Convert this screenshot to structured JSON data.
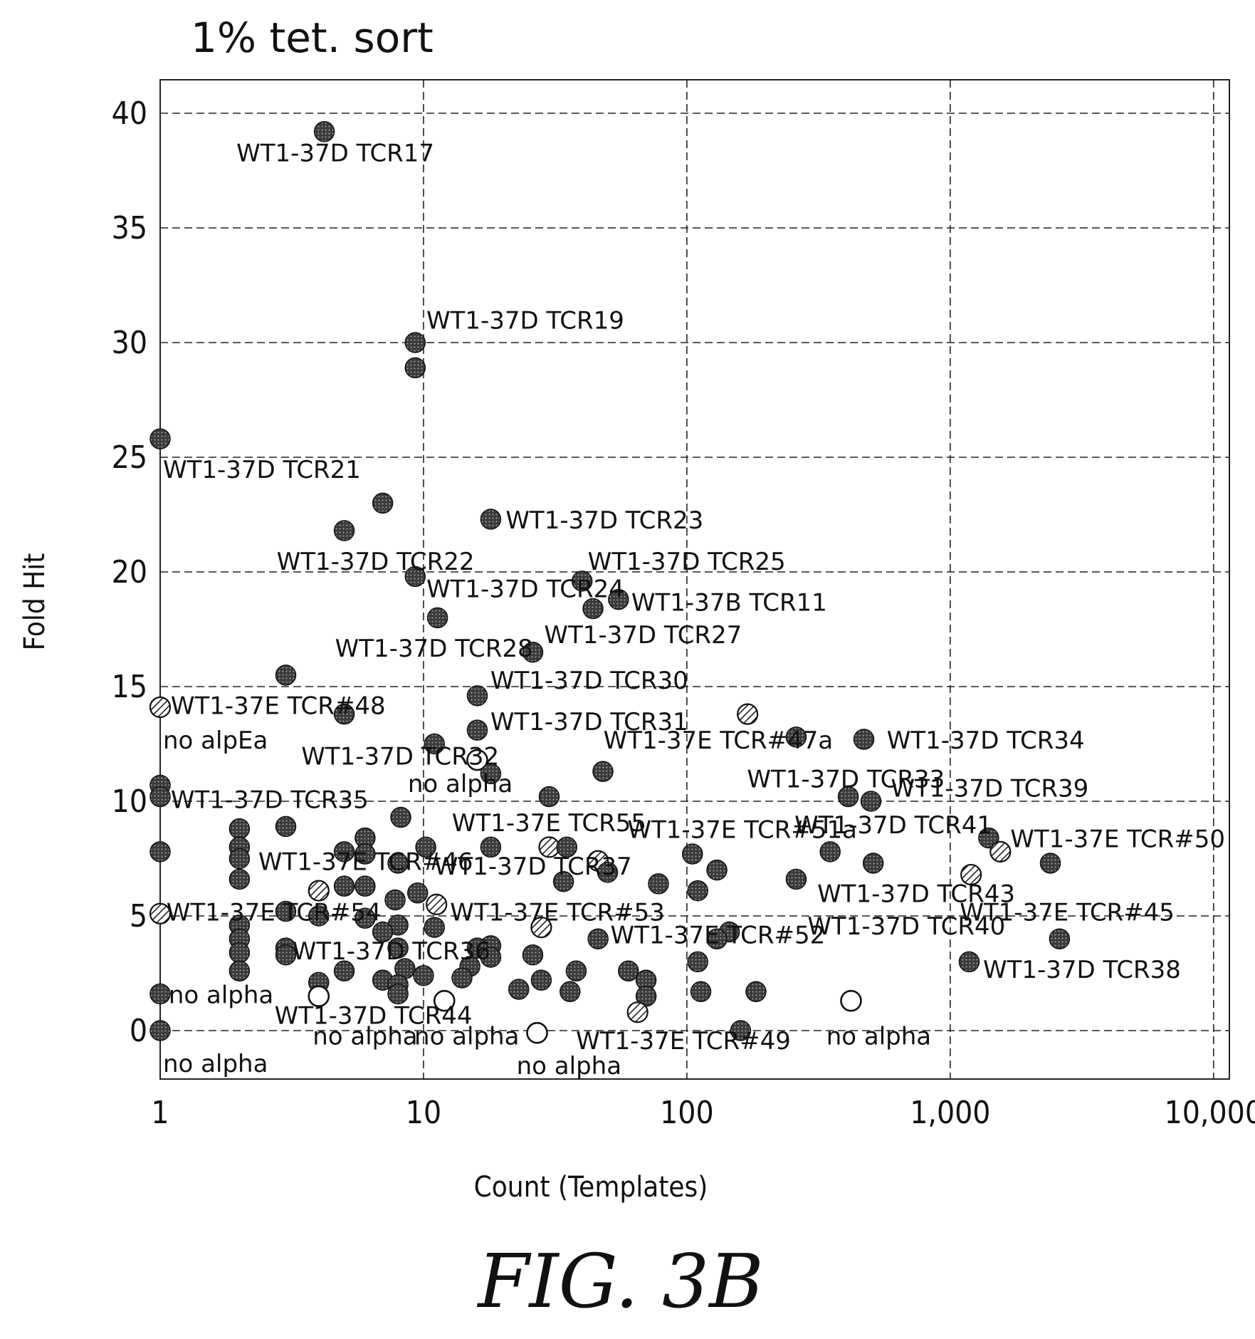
{
  "chart_data": {
    "type": "scatter",
    "title": "1% tet. sort",
    "xlabel": "Count (Templates)",
    "ylabel": "Fold Hit",
    "x_scale": "log",
    "xlim": [
      1,
      10000
    ],
    "ylim": [
      -2,
      41
    ],
    "grid": true,
    "x_ticks": [
      "1",
      "10",
      "100",
      "1,000",
      "10,000"
    ],
    "y_ticks": [
      "0",
      "5",
      "10",
      "15",
      "20",
      "25",
      "30",
      "35",
      "40"
    ],
    "figure_label": "FIG. 3B",
    "point_styles": [
      "filled",
      "hatched",
      "open"
    ],
    "points": [
      {
        "x": 4.2,
        "y": 39.2,
        "style": "filled",
        "label": "WT1-37D TCR17"
      },
      {
        "x": 9.3,
        "y": 30.0,
        "style": "filled",
        "label": "WT1-37D TCR19"
      },
      {
        "x": 9.3,
        "y": 28.9,
        "style": "filled",
        "label": ""
      },
      {
        "x": 1.0,
        "y": 25.8,
        "style": "filled",
        "label": "WT1-37D TCR21"
      },
      {
        "x": 7.0,
        "y": 23.0,
        "style": "filled",
        "label": ""
      },
      {
        "x": 5.0,
        "y": 21.8,
        "style": "filled",
        "label": "WT1-37D TCR22"
      },
      {
        "x": 18,
        "y": 22.3,
        "style": "filled",
        "label": "WT1-37D TCR23"
      },
      {
        "x": 9.3,
        "y": 19.8,
        "style": "filled",
        "label": "WT1-37D TCR24"
      },
      {
        "x": 40,
        "y": 19.6,
        "style": "filled",
        "label": "WT1-37D TCR25"
      },
      {
        "x": 55,
        "y": 18.8,
        "style": "filled",
        "label": "WT1-37B TCR11"
      },
      {
        "x": 44,
        "y": 18.4,
        "style": "filled",
        "label": ""
      },
      {
        "x": 11.3,
        "y": 18.0,
        "style": "filled",
        "label": "WT1-37D TCR28"
      },
      {
        "x": 26,
        "y": 16.5,
        "style": "filled",
        "label": "WT1-37D TCR27"
      },
      {
        "x": 3.0,
        "y": 15.5,
        "style": "filled",
        "label": ""
      },
      {
        "x": 16,
        "y": 14.6,
        "style": "filled",
        "label": "WT1-37D TCR30"
      },
      {
        "x": 1.0,
        "y": 14.1,
        "style": "hatched",
        "label": "WT1-37E TCR#48"
      },
      {
        "x": 5.0,
        "y": 13.8,
        "style": "filled",
        "label": ""
      },
      {
        "x": 16,
        "y": 13.1,
        "style": "filled",
        "label": "WT1-37D TCR31"
      },
      {
        "x": 170,
        "y": 13.8,
        "style": "hatched",
        "label": "WT1-37E TCR#47a"
      },
      {
        "x": 11.0,
        "y": 12.5,
        "style": "filled",
        "label": "WT1-37D TCR32"
      },
      {
        "x": 260,
        "y": 12.8,
        "style": "filled",
        "label": ""
      },
      {
        "x": 470,
        "y": 12.7,
        "style": "filled",
        "label": "WT1-37D TCR34"
      },
      {
        "x": 16,
        "y": 11.8,
        "style": "open",
        "label": "no alpha"
      },
      {
        "x": 18,
        "y": 11.2,
        "style": "filled",
        "label": ""
      },
      {
        "x": 48,
        "y": 11.3,
        "style": "filled",
        "label": ""
      },
      {
        "x": 1.0,
        "y": 10.7,
        "style": "filled",
        "label": "WT1-37D TCR35"
      },
      {
        "x": 1.0,
        "y": 10.2,
        "style": "filled",
        "label": ""
      },
      {
        "x": 410,
        "y": 10.2,
        "style": "filled",
        "label": "WT1-37D TCR33"
      },
      {
        "x": 500,
        "y": 10.0,
        "style": "filled",
        "label": "WT1-37D TCR39"
      },
      {
        "x": 30,
        "y": 10.2,
        "style": "filled",
        "label": ""
      },
      {
        "x": 8.2,
        "y": 9.3,
        "style": "filled",
        "label": ""
      },
      {
        "x": 3.0,
        "y": 8.9,
        "style": "filled",
        "label": ""
      },
      {
        "x": 2.0,
        "y": 8.8,
        "style": "filled",
        "label": ""
      },
      {
        "x": 2.0,
        "y": 8.0,
        "style": "filled",
        "label": ""
      },
      {
        "x": 6.0,
        "y": 8.4,
        "style": "filled",
        "label": ""
      },
      {
        "x": 1400,
        "y": 8.4,
        "style": "filled",
        "label": "WT1-37E TCR#50"
      },
      {
        "x": 1.0,
        "y": 7.8,
        "style": "filled",
        "label": ""
      },
      {
        "x": 2.0,
        "y": 7.5,
        "style": "filled",
        "label": ""
      },
      {
        "x": 5.0,
        "y": 7.8,
        "style": "filled",
        "label": "WT1-37E TCR#46"
      },
      {
        "x": 6.0,
        "y": 7.7,
        "style": "filled",
        "label": ""
      },
      {
        "x": 10.2,
        "y": 8.0,
        "style": "filled",
        "label": ""
      },
      {
        "x": 30,
        "y": 8.0,
        "style": "hatched",
        "label": "WT1-37E TCR55"
      },
      {
        "x": 35,
        "y": 8.0,
        "style": "filled",
        "label": ""
      },
      {
        "x": 18,
        "y": 8.0,
        "style": "filled",
        "label": ""
      },
      {
        "x": 1550,
        "y": 7.8,
        "style": "hatched",
        "label": ""
      },
      {
        "x": 350,
        "y": 7.8,
        "style": "filled",
        "label": "WT1-37D TCR41"
      },
      {
        "x": 105,
        "y": 7.7,
        "style": "filled",
        "label": "WT1-37E TCR#51a"
      },
      {
        "x": 46,
        "y": 7.4,
        "style": "hatched",
        "label": ""
      },
      {
        "x": 8.0,
        "y": 7.3,
        "style": "filled",
        "label": ""
      },
      {
        "x": 510,
        "y": 7.3,
        "style": "filled",
        "label": ""
      },
      {
        "x": 2400,
        "y": 7.3,
        "style": "filled",
        "label": ""
      },
      {
        "x": 130,
        "y": 7.0,
        "style": "filled",
        "label": ""
      },
      {
        "x": 50,
        "y": 6.9,
        "style": "filled",
        "label": "WT1-37D TCR37"
      },
      {
        "x": 1200,
        "y": 6.8,
        "style": "hatched",
        "label": "WT1-37E TCR#45"
      },
      {
        "x": 2.0,
        "y": 6.6,
        "style": "filled",
        "label": ""
      },
      {
        "x": 260,
        "y": 6.6,
        "style": "filled",
        "label": "WT1-37D TCR43"
      },
      {
        "x": 34,
        "y": 6.5,
        "style": "filled",
        "label": ""
      },
      {
        "x": 5.0,
        "y": 6.3,
        "style": "filled",
        "label": ""
      },
      {
        "x": 6.0,
        "y": 6.3,
        "style": "filled",
        "label": ""
      },
      {
        "x": 78,
        "y": 6.4,
        "style": "filled",
        "label": ""
      },
      {
        "x": 4.0,
        "y": 6.1,
        "style": "hatched",
        "label": ""
      },
      {
        "x": 110,
        "y": 6.1,
        "style": "filled",
        "label": ""
      },
      {
        "x": 9.5,
        "y": 6.0,
        "style": "filled",
        "label": ""
      },
      {
        "x": 7.8,
        "y": 5.7,
        "style": "filled",
        "label": ""
      },
      {
        "x": 11.2,
        "y": 5.5,
        "style": "hatched",
        "label": "WT1-37E TCR#53"
      },
      {
        "x": 1.0,
        "y": 5.1,
        "style": "hatched",
        "label": "WT1-37E TCR#54"
      },
      {
        "x": 3.0,
        "y": 5.2,
        "style": "filled",
        "label": ""
      },
      {
        "x": 4.0,
        "y": 5.0,
        "style": "filled",
        "label": ""
      },
      {
        "x": 6.0,
        "y": 4.9,
        "style": "filled",
        "label": ""
      },
      {
        "x": 2.0,
        "y": 4.6,
        "style": "filled",
        "label": ""
      },
      {
        "x": 8.0,
        "y": 4.6,
        "style": "filled",
        "label": ""
      },
      {
        "x": 11.0,
        "y": 4.5,
        "style": "filled",
        "label": ""
      },
      {
        "x": 28,
        "y": 4.5,
        "style": "hatched",
        "label": ""
      },
      {
        "x": 7.0,
        "y": 4.3,
        "style": "filled",
        "label": ""
      },
      {
        "x": 145,
        "y": 4.3,
        "style": "filled",
        "label": "WT1-37E TCR#52"
      },
      {
        "x": 2.0,
        "y": 4.0,
        "style": "filled",
        "label": ""
      },
      {
        "x": 46,
        "y": 4.0,
        "style": "filled",
        "label": ""
      },
      {
        "x": 130,
        "y": 4.0,
        "style": "filled",
        "label": "WT1-37D TCR40"
      },
      {
        "x": 2600,
        "y": 4.0,
        "style": "filled",
        "label": ""
      },
      {
        "x": 3.0,
        "y": 3.6,
        "style": "filled",
        "label": "WT1-37D TCR36"
      },
      {
        "x": 18,
        "y": 3.7,
        "style": "filled",
        "label": ""
      },
      {
        "x": 8.0,
        "y": 3.6,
        "style": "filled",
        "label": ""
      },
      {
        "x": 16,
        "y": 3.6,
        "style": "filled",
        "label": ""
      },
      {
        "x": 2.0,
        "y": 3.4,
        "style": "filled",
        "label": ""
      },
      {
        "x": 3.0,
        "y": 3.3,
        "style": "filled",
        "label": ""
      },
      {
        "x": 26,
        "y": 3.3,
        "style": "filled",
        "label": ""
      },
      {
        "x": 18,
        "y": 3.2,
        "style": "filled",
        "label": ""
      },
      {
        "x": 1180,
        "y": 3.0,
        "style": "filled",
        "label": "WT1-37D TCR38"
      },
      {
        "x": 110,
        "y": 3.0,
        "style": "filled",
        "label": ""
      },
      {
        "x": 15,
        "y": 2.8,
        "style": "filled",
        "label": ""
      },
      {
        "x": 8.5,
        "y": 2.7,
        "style": "filled",
        "label": ""
      },
      {
        "x": 2.0,
        "y": 2.6,
        "style": "filled",
        "label": ""
      },
      {
        "x": 5.0,
        "y": 2.6,
        "style": "filled",
        "label": ""
      },
      {
        "x": 38,
        "y": 2.6,
        "style": "filled",
        "label": ""
      },
      {
        "x": 60,
        "y": 2.6,
        "style": "filled",
        "label": ""
      },
      {
        "x": 10.0,
        "y": 2.4,
        "style": "filled",
        "label": ""
      },
      {
        "x": 14,
        "y": 2.3,
        "style": "filled",
        "label": ""
      },
      {
        "x": 7.0,
        "y": 2.2,
        "style": "filled",
        "label": ""
      },
      {
        "x": 4.0,
        "y": 2.1,
        "style": "filled",
        "label": ""
      },
      {
        "x": 28,
        "y": 2.2,
        "style": "filled",
        "label": ""
      },
      {
        "x": 70,
        "y": 2.2,
        "style": "filled",
        "label": ""
      },
      {
        "x": 8.0,
        "y": 2.0,
        "style": "filled",
        "label": ""
      },
      {
        "x": 23,
        "y": 1.8,
        "style": "filled",
        "label": ""
      },
      {
        "x": 36,
        "y": 1.7,
        "style": "filled",
        "label": ""
      },
      {
        "x": 113,
        "y": 1.7,
        "style": "filled",
        "label": ""
      },
      {
        "x": 183,
        "y": 1.7,
        "style": "filled",
        "label": ""
      },
      {
        "x": 1.0,
        "y": 1.6,
        "style": "filled",
        "label": "no alpha"
      },
      {
        "x": 8.0,
        "y": 1.6,
        "style": "filled",
        "label": ""
      },
      {
        "x": 4.0,
        "y": 1.5,
        "style": "open",
        "label": "WT1-37D TCR44"
      },
      {
        "x": 70,
        "y": 1.5,
        "style": "filled",
        "label": ""
      },
      {
        "x": 12.0,
        "y": 1.3,
        "style": "open",
        "label": "no alpha"
      },
      {
        "x": 420,
        "y": 1.3,
        "style": "open",
        "label": "no alpha"
      },
      {
        "x": 65,
        "y": 0.8,
        "style": "hatched",
        "label": "WT1-37E TCR#49"
      },
      {
        "x": 1.0,
        "y": 0.0,
        "style": "filled",
        "label": "no alpha"
      },
      {
        "x": 27,
        "y": -0.1,
        "style": "open",
        "label": "no alpha"
      },
      {
        "x": 160,
        "y": 0.0,
        "style": "filled",
        "label": ""
      }
    ],
    "annotations": [
      {
        "text": "WT1-37D TCR17",
        "x": 1.9,
        "y": 37.9
      },
      {
        "text": "WT1-37D TCR19",
        "x": 10.0,
        "y": 30.6
      },
      {
        "text": "WT1-37D TCR21",
        "x": 1.0,
        "y": 24.1
      },
      {
        "text": "WT1-37D TCR23",
        "x": 20.0,
        "y": 21.9
      },
      {
        "text": "WT1-37D TCR22",
        "x": 2.7,
        "y": 20.1
      },
      {
        "text": "WT1-37D TCR25",
        "x": 41.0,
        "y": 20.1
      },
      {
        "text": "WT1-37D TCR24",
        "x": 10.0,
        "y": 18.9
      },
      {
        "text": "WT1-37B TCR11",
        "x": 60.0,
        "y": 18.3
      },
      {
        "text": "WT1-37D TCR28",
        "x": 4.5,
        "y": 16.3
      },
      {
        "text": "WT1-37D TCR27",
        "x": 28.0,
        "y": 16.9
      },
      {
        "text": "WT1-37D TCR30",
        "x": 17.5,
        "y": 14.9
      },
      {
        "text": "WT1-37E TCR#48",
        "x": 1.07,
        "y": 13.8
      },
      {
        "text": "WT1-37D TCR31",
        "x": 17.5,
        "y": 13.1
      },
      {
        "text": "no alpEa",
        "x": 1.0,
        "y": 12.3
      },
      {
        "text": "WT1-37E TCR#47a",
        "x": 47.0,
        "y": 12.3
      },
      {
        "text": "WT1-37D TCR34",
        "x": 560,
        "y": 12.3
      },
      {
        "text": "WT1-37D TCR32",
        "x": 3.35,
        "y": 11.6
      },
      {
        "text": "WT1-37D TCR33",
        "x": 165,
        "y": 10.6
      },
      {
        "text": "no alpha",
        "x": 8.5,
        "y": 10.4
      },
      {
        "text": "WT1-37D TCR39",
        "x": 580,
        "y": 10.2
      },
      {
        "text": "WT1-37D TCR35",
        "x": 1.07,
        "y": 9.7
      },
      {
        "text": "WT1-37E TCR55",
        "x": 12.5,
        "y": 8.7
      },
      {
        "text": "WT1-37E TCR#51a",
        "x": 58.0,
        "y": 8.4
      },
      {
        "text": "WT1-37D TCR41",
        "x": 250,
        "y": 8.6
      },
      {
        "text": "WT1-37E TCR#50",
        "x": 1650,
        "y": 8.0
      },
      {
        "text": "WT1-37E TCR#46",
        "x": 2.3,
        "y": 7.0
      },
      {
        "text": "WT1-37D TCR37",
        "x": 10.7,
        "y": 6.8
      },
      {
        "text": "WT1-37D TCR43",
        "x": 305,
        "y": 5.6
      },
      {
        "text": "WT1-37E TCR#45",
        "x": 1060,
        "y": 4.8
      },
      {
        "text": "WT1-37E TCR#53",
        "x": 12.3,
        "y": 4.8
      },
      {
        "text": "WT1-37E TCR#54",
        "x": 1.03,
        "y": 4.8
      },
      {
        "text": "WT1-37D TCR40",
        "x": 280,
        "y": 4.2
      },
      {
        "text": "WT1-37E TCR#52",
        "x": 50.0,
        "y": 3.8
      },
      {
        "text": "WT1-37D TCR36",
        "x": 3.1,
        "y": 3.1
      },
      {
        "text": "WT1-37D TCR38",
        "x": 1300,
        "y": 2.3
      },
      {
        "text": "no alpha",
        "x": 1.05,
        "y": 1.2
      },
      {
        "text": "WT1-37D TCR44",
        "x": 2.65,
        "y": 0.3
      },
      {
        "text": "no alpha",
        "x": 3.7,
        "y": -0.6
      },
      {
        "text": "no alpha",
        "x": 9.0,
        "y": -0.6
      },
      {
        "text": "WT1-37E TCR#49",
        "x": 37.0,
        "y": -0.8
      },
      {
        "text": "no alpha",
        "x": 330,
        "y": -0.6
      },
      {
        "text": "no alpha",
        "x": 1.0,
        "y": -1.8
      },
      {
        "text": "no alpha",
        "x": 22.0,
        "y": -1.9
      }
    ]
  }
}
